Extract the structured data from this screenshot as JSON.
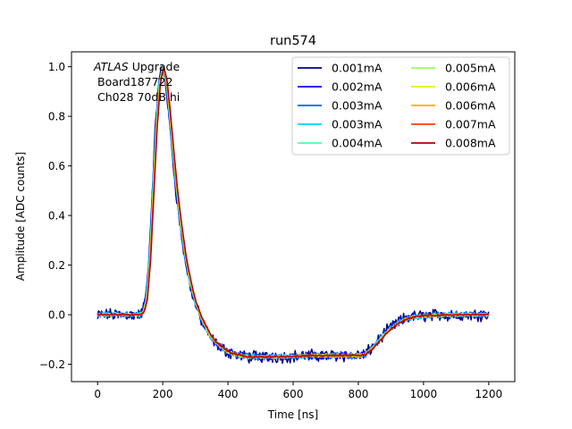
{
  "chart_data": {
    "type": "line",
    "title": "run574",
    "xlabel": "Time [ns]",
    "ylabel": "Amplitude [ADC counts]",
    "xlim": [
      -80,
      1280
    ],
    "ylim": [
      -0.27,
      1.06
    ],
    "xticks": [
      0,
      200,
      400,
      600,
      800,
      1000,
      1200
    ],
    "yticks": [
      -0.2,
      0.0,
      0.2,
      0.4,
      0.6,
      0.8,
      1.0
    ],
    "xtick_labels": [
      "0",
      "200",
      "400",
      "600",
      "800",
      "1000",
      "1200"
    ],
    "ytick_labels": [
      "−0.2",
      "0.0",
      "0.2",
      "0.4",
      "0.6",
      "0.8",
      "1.0"
    ],
    "grid": false,
    "legend_position": "top-right",
    "legend_columns": 2,
    "annotation": {
      "line1_italic": "ATLAS",
      "line1_rest": " Upgrade",
      "line2": "Board187722",
      "line3": "Ch028 70dB hi"
    },
    "pulse_shape": {
      "x": [
        0,
        100,
        130,
        140,
        150,
        160,
        170,
        180,
        190,
        200,
        210,
        220,
        230,
        240,
        250,
        260,
        270,
        280,
        290,
        300,
        320,
        340,
        360,
        380,
        400,
        420,
        440,
        460,
        480,
        500,
        550,
        600,
        650,
        700,
        750,
        800,
        820,
        840,
        860,
        880,
        900,
        920,
        940,
        960,
        980,
        1000,
        1050,
        1100,
        1150,
        1200
      ],
      "y": [
        0.0,
        0.0,
        0.0,
        0.01,
        0.06,
        0.22,
        0.48,
        0.75,
        0.93,
        1.0,
        0.95,
        0.83,
        0.68,
        0.54,
        0.42,
        0.32,
        0.23,
        0.16,
        0.1,
        0.05,
        -0.02,
        -0.07,
        -0.11,
        -0.13,
        -0.15,
        -0.16,
        -0.165,
        -0.17,
        -0.17,
        -0.17,
        -0.17,
        -0.168,
        -0.165,
        -0.165,
        -0.165,
        -0.165,
        -0.16,
        -0.14,
        -0.11,
        -0.08,
        -0.055,
        -0.035,
        -0.02,
        -0.012,
        -0.007,
        -0.004,
        -0.002,
        0.0,
        0.0,
        0.0
      ]
    },
    "series": [
      {
        "name": "0.001mA",
        "color": "#00007f",
        "noise": 0.02
      },
      {
        "name": "0.002mA",
        "color": "#0000ff",
        "noise": 0.013
      },
      {
        "name": "0.003mA",
        "color": "#0062ff",
        "noise": 0.01
      },
      {
        "name": "0.003mA",
        "color": "#00d4ff",
        "noise": 0.008
      },
      {
        "name": "0.004mA",
        "color": "#4dffaa",
        "noise": 0.006
      },
      {
        "name": "0.005mA",
        "color": "#9cff5a",
        "noise": 0.005
      },
      {
        "name": "0.006mA",
        "color": "#e4f500",
        "noise": 0.004
      },
      {
        "name": "0.006mA",
        "color": "#ffab00",
        "noise": 0.004
      },
      {
        "name": "0.007mA",
        "color": "#ff3b00",
        "noise": 0.003
      },
      {
        "name": "0.008mA",
        "color": "#b20000",
        "noise": 0.003
      }
    ]
  }
}
